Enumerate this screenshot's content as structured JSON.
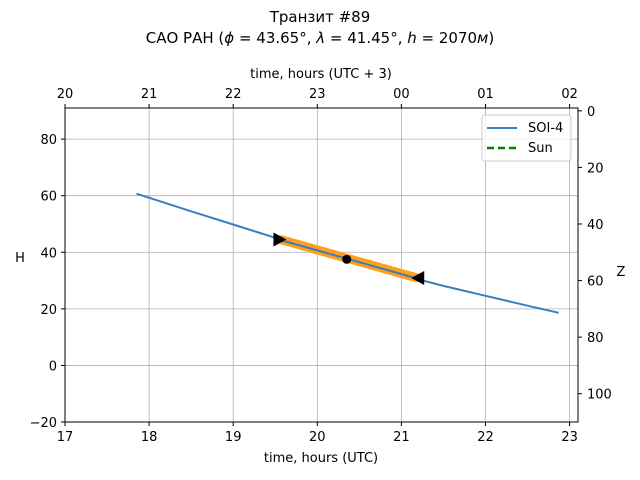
{
  "title_line1": "Транзит #89",
  "title_line2": "САО РАН (",
  "title_phi": "ϕ",
  "title_lambda": "λ",
  "title_h": "h",
  "title_phi_val": " = 43.65°, ",
  "title_lambda_val": " = 41.45°, ",
  "title_h_val": " = 2070",
  "title_unit": "м",
  "title_close": ")",
  "colors": {
    "soi": "#3a7ebf",
    "sun": "#008000",
    "transit": "#ff9f1c",
    "marker": "#000000",
    "grid": "#b0b0b0"
  },
  "chart_data": {
    "type": "line",
    "xlabel_bottom": "time, hours (UTC)",
    "xlabel_top": "time, hours (UTC + 3)",
    "ylabel_left": "H",
    "ylabel_right": "Z",
    "xlim": [
      17,
      23.1
    ],
    "ylim": [
      -20,
      91
    ],
    "x_ticks": [
      17,
      18,
      19,
      20,
      21,
      22,
      23
    ],
    "y_ticks": [
      -20,
      0,
      20,
      40,
      60,
      80
    ],
    "top_ticks": [
      {
        "x": 17,
        "label": "20"
      },
      {
        "x": 18,
        "label": "21"
      },
      {
        "x": 19,
        "label": "22"
      },
      {
        "x": 20,
        "label": "23"
      },
      {
        "x": 21,
        "label": "00"
      },
      {
        "x": 22,
        "label": "01"
      },
      {
        "x": 23,
        "label": "02"
      }
    ],
    "right_ticks": [
      {
        "y": 90,
        "label": "0"
      },
      {
        "y": 70,
        "label": "20"
      },
      {
        "y": 50,
        "label": "40"
      },
      {
        "y": 30,
        "label": "60"
      },
      {
        "y": 10,
        "label": "80"
      },
      {
        "y": -10,
        "label": "100"
      }
    ],
    "grid": true,
    "legend_position": "top-right",
    "series": [
      {
        "name": "SOI-4",
        "style": "solid",
        "x": [
          17.85,
          18.5,
          19.0,
          19.5,
          20.0,
          20.5,
          21.0,
          21.5,
          22.0,
          22.5,
          22.87
        ],
        "y": [
          60.7,
          54.5,
          49.8,
          45.1,
          40.6,
          36.2,
          32.0,
          28.1,
          24.6,
          21.1,
          18.6
        ]
      },
      {
        "name": "Sun",
        "style": "dashed",
        "x": [],
        "y": []
      }
    ],
    "transit_segment": {
      "x": [
        19.55,
        21.2
      ],
      "y": [
        44.6,
        30.8
      ]
    },
    "markers": [
      {
        "name": "ingress",
        "x": 19.55,
        "y": 44.5,
        "shape": "triangle-right"
      },
      {
        "name": "mid",
        "x": 20.35,
        "y": 37.5,
        "shape": "circle"
      },
      {
        "name": "egress",
        "x": 21.2,
        "y": 30.9,
        "shape": "triangle-left"
      }
    ]
  }
}
